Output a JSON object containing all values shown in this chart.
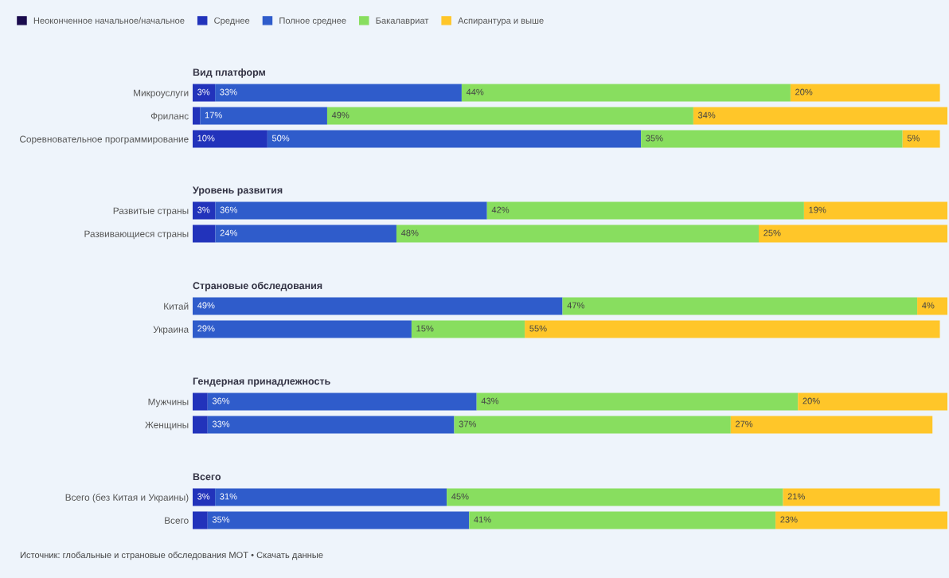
{
  "chart_data": [
    {
      "type": "bar",
      "orientation": "horizontal",
      "stacked": true,
      "title": "Вид платформ",
      "legend": "top",
      "tick_labels": "y",
      "categories": [
        "Микроуслуги",
        "Фриланс",
        "Соревновательное программирование"
      ],
      "series": [
        {
          "name": "Неоконченное начальное/начальное",
          "color": "#1a0b4d",
          "values": [
            null,
            null,
            null
          ],
          "value_labels": [
            null,
            null,
            null
          ]
        },
        {
          "name": "Среднее",
          "color": "#2233bb",
          "values": [
            3,
            1,
            10
          ],
          "value_labels": [
            "3%",
            null,
            "10%"
          ]
        },
        {
          "name": "Полное среднее",
          "color": "#2f5ccb",
          "values": [
            33,
            17,
            50
          ],
          "value_labels": [
            "33%",
            "17%",
            "50%"
          ]
        },
        {
          "name": "Бакалавриат",
          "color": "#88de5f",
          "values": [
            44,
            49,
            35
          ],
          "value_labels": [
            "44%",
            "49%",
            "35%"
          ]
        },
        {
          "name": "Аспирантура и выше",
          "color": "#ffc629",
          "values": [
            20,
            34,
            5
          ],
          "value_labels": [
            "20%",
            "34%",
            "5%"
          ]
        }
      ]
    },
    {
      "type": "bar",
      "orientation": "horizontal",
      "stacked": true,
      "title": "Уровень развития",
      "tick_labels": "y",
      "categories": [
        "Развитые страны",
        "Развивающиеся страны"
      ],
      "series": [
        {
          "color": "#2233bb",
          "values": [
            3,
            3
          ],
          "value_labels": [
            "3%",
            null
          ]
        },
        {
          "color": "#2f5ccb",
          "values": [
            36,
            24
          ],
          "value_labels": [
            "36%",
            "24%"
          ]
        },
        {
          "color": "#88de5f",
          "values": [
            42,
            48
          ],
          "value_labels": [
            "42%",
            "48%"
          ]
        },
        {
          "color": "#ffc629",
          "values": [
            19,
            25
          ],
          "value_labels": [
            "19%",
            "25%"
          ]
        }
      ]
    },
    {
      "type": "bar",
      "orientation": "horizontal",
      "stacked": true,
      "title": "Страновые обследования",
      "tick_labels": "y",
      "categories": [
        "Китай",
        "Украина"
      ],
      "series": [
        {
          "color": "#2f5ccb",
          "values": [
            49,
            29
          ],
          "value_labels": [
            "49%",
            "29%"
          ]
        },
        {
          "color": "#88de5f",
          "values": [
            47,
            15
          ],
          "value_labels": [
            "47%",
            "15%"
          ]
        },
        {
          "color": "#ffc629",
          "values": [
            4,
            55
          ],
          "value_labels": [
            "4%",
            "55%"
          ]
        }
      ]
    },
    {
      "type": "bar",
      "orientation": "horizontal",
      "stacked": true,
      "title": "Гендерная принадлежность",
      "tick_labels": "y",
      "categories": [
        "Мужчины",
        "Женщины"
      ],
      "series": [
        {
          "color": "#2233bb",
          "values": [
            2,
            2
          ],
          "value_labels": [
            null,
            null
          ]
        },
        {
          "color": "#2f5ccb",
          "values": [
            36,
            33
          ],
          "value_labels": [
            "36%",
            "33%"
          ]
        },
        {
          "color": "#88de5f",
          "values": [
            43,
            37
          ],
          "value_labels": [
            "43%",
            "37%"
          ]
        },
        {
          "color": "#ffc629",
          "values": [
            20,
            27
          ],
          "value_labels": [
            "20%",
            "27%"
          ]
        }
      ]
    },
    {
      "type": "bar",
      "orientation": "horizontal",
      "stacked": true,
      "title": "Всего",
      "tick_labels": "y",
      "categories": [
        "Всего (без Китая и Украины)",
        "Всего"
      ],
      "series": [
        {
          "color": "#2233bb",
          "values": [
            3,
            2
          ],
          "value_labels": [
            "3%",
            null
          ]
        },
        {
          "color": "#2f5ccb",
          "values": [
            31,
            35
          ],
          "value_labels": [
            "31%",
            "35%"
          ]
        },
        {
          "color": "#88de5f",
          "values": [
            45,
            41
          ],
          "value_labels": [
            "45%",
            "41%"
          ]
        },
        {
          "color": "#ffc629",
          "values": [
            21,
            23
          ],
          "value_labels": [
            "21%",
            "23%"
          ]
        }
      ],
      "annotations": [
        "Источник: глобальные и страновые обследования МОТ • Скачать данные"
      ]
    }
  ]
}
